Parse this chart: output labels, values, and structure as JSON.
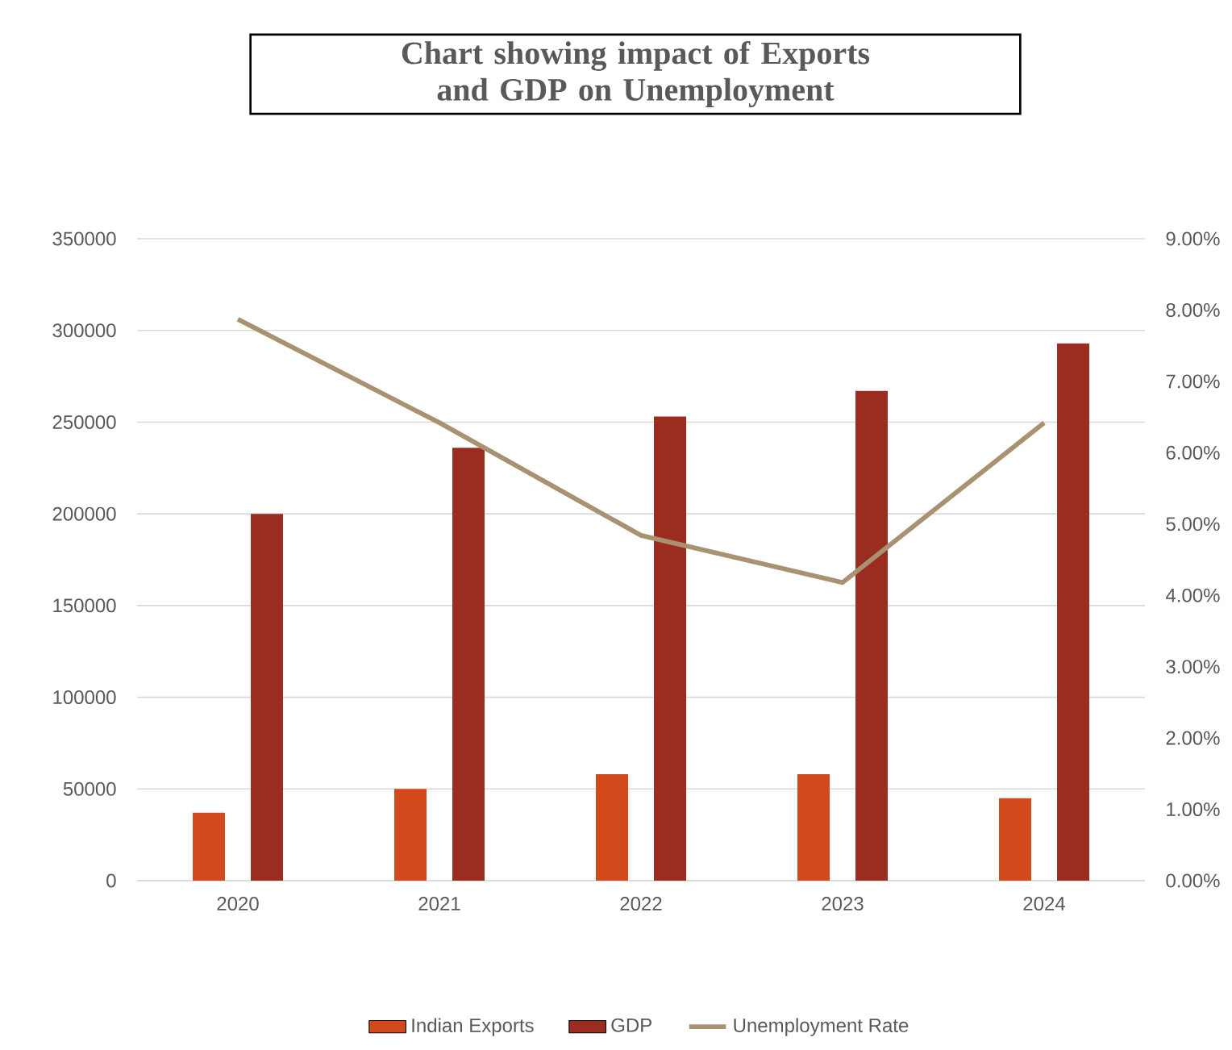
{
  "chart_data": {
    "type": "bar",
    "title": "Chart showing impact of Exports and GDP on Unemployment",
    "categories": [
      "2020",
      "2021",
      "2022",
      "2023",
      "2024"
    ],
    "series": [
      {
        "name": "Indian Exports",
        "color": "#d24a1c",
        "values": [
          37000,
          50000,
          58000,
          58000,
          45000
        ]
      },
      {
        "name": "GDP",
        "color": "#9b2d20",
        "values": [
          200000,
          236000,
          253000,
          267000,
          293000
        ]
      },
      {
        "name": "Unemployment Rate",
        "type": "line",
        "axis": "y2",
        "color": "#a89271",
        "values": [
          7.87,
          6.42,
          4.84,
          4.18,
          6.42
        ]
      }
    ],
    "ylim": [
      0,
      350000
    ],
    "yticks": [
      0,
      50000,
      100000,
      150000,
      200000,
      250000,
      300000,
      350000
    ],
    "y2lim": [
      0,
      9
    ],
    "y2ticks": [
      {
        "value": 0,
        "label": "0.00%"
      },
      {
        "value": 1,
        "label": "1.00%"
      },
      {
        "value": 2,
        "label": "2.00%"
      },
      {
        "value": 3,
        "label": "3.00%"
      },
      {
        "value": 4,
        "label": "4.00%"
      },
      {
        "value": 5,
        "label": "5.00%"
      },
      {
        "value": 6,
        "label": "6.00%"
      },
      {
        "value": 7,
        "label": "7.00%"
      },
      {
        "value": 8,
        "label": "8.00%"
      },
      {
        "value": 9,
        "label": "9.00%"
      }
    ],
    "grid": "y",
    "legend": "bottom"
  }
}
